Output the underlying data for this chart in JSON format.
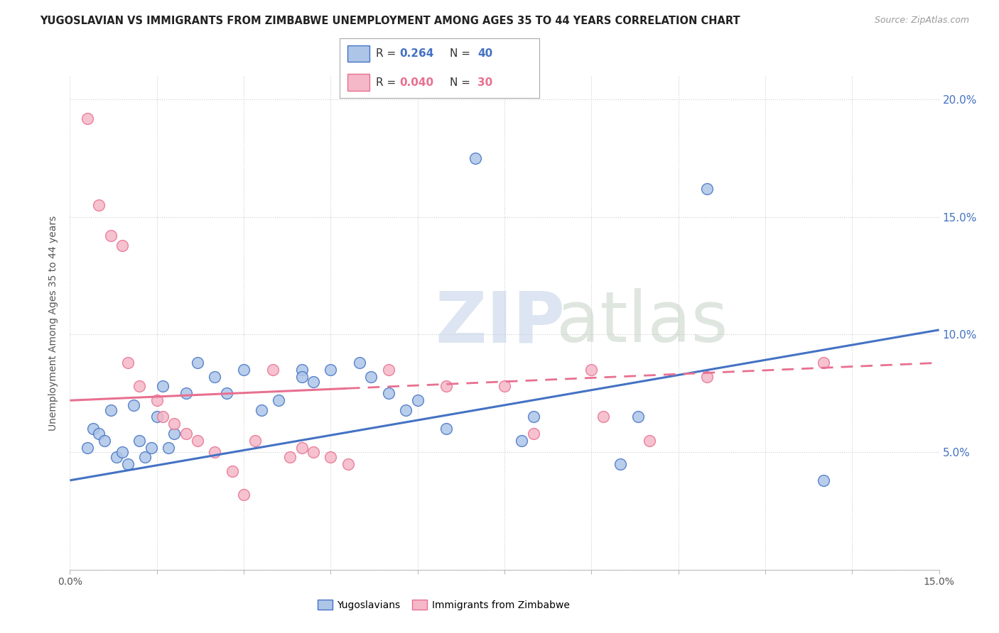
{
  "title": "YUGOSLAVIAN VS IMMIGRANTS FROM ZIMBABWE UNEMPLOYMENT AMONG AGES 35 TO 44 YEARS CORRELATION CHART",
  "source": "Source: ZipAtlas.com",
  "ylabel": "Unemployment Among Ages 35 to 44 years",
  "xlim": [
    0.0,
    15.0
  ],
  "ylim": [
    0.0,
    21.0
  ],
  "legend_label1": "Yugoslavians",
  "legend_label2": "Immigrants from Zimbabwe",
  "blue_color": "#adc6e8",
  "pink_color": "#f5b8c8",
  "line_blue": "#4472c4",
  "line_pink": "#e87090",
  "blue_scatter": [
    [
      0.3,
      5.2
    ],
    [
      0.4,
      6.0
    ],
    [
      0.5,
      5.8
    ],
    [
      0.6,
      5.5
    ],
    [
      0.7,
      6.8
    ],
    [
      0.8,
      4.8
    ],
    [
      0.9,
      5.0
    ],
    [
      1.0,
      4.5
    ],
    [
      1.1,
      7.0
    ],
    [
      1.2,
      5.5
    ],
    [
      1.3,
      4.8
    ],
    [
      1.4,
      5.2
    ],
    [
      1.5,
      6.5
    ],
    [
      1.6,
      7.8
    ],
    [
      1.7,
      5.2
    ],
    [
      1.8,
      5.8
    ],
    [
      2.0,
      7.5
    ],
    [
      2.2,
      8.8
    ],
    [
      2.5,
      8.2
    ],
    [
      2.7,
      7.5
    ],
    [
      3.0,
      8.5
    ],
    [
      3.3,
      6.8
    ],
    [
      3.6,
      7.2
    ],
    [
      4.0,
      8.5
    ],
    [
      4.0,
      8.2
    ],
    [
      4.2,
      8.0
    ],
    [
      4.5,
      8.5
    ],
    [
      5.0,
      8.8
    ],
    [
      5.2,
      8.2
    ],
    [
      5.5,
      7.5
    ],
    [
      5.8,
      6.8
    ],
    [
      6.0,
      7.2
    ],
    [
      6.5,
      6.0
    ],
    [
      7.0,
      17.5
    ],
    [
      7.8,
      5.5
    ],
    [
      8.0,
      6.5
    ],
    [
      9.5,
      4.5
    ],
    [
      9.8,
      6.5
    ],
    [
      11.0,
      16.2
    ],
    [
      13.0,
      3.8
    ]
  ],
  "pink_scatter": [
    [
      0.3,
      19.2
    ],
    [
      0.5,
      15.5
    ],
    [
      0.7,
      14.2
    ],
    [
      0.9,
      13.8
    ],
    [
      1.0,
      8.8
    ],
    [
      1.2,
      7.8
    ],
    [
      1.5,
      7.2
    ],
    [
      1.6,
      6.5
    ],
    [
      1.8,
      6.2
    ],
    [
      2.0,
      5.8
    ],
    [
      2.2,
      5.5
    ],
    [
      2.5,
      5.0
    ],
    [
      2.8,
      4.2
    ],
    [
      3.0,
      3.2
    ],
    [
      3.2,
      5.5
    ],
    [
      3.5,
      8.5
    ],
    [
      3.8,
      4.8
    ],
    [
      4.0,
      5.2
    ],
    [
      4.2,
      5.0
    ],
    [
      4.5,
      4.8
    ],
    [
      4.8,
      4.5
    ],
    [
      5.5,
      8.5
    ],
    [
      6.5,
      7.8
    ],
    [
      7.5,
      7.8
    ],
    [
      8.0,
      5.8
    ],
    [
      9.0,
      8.5
    ],
    [
      9.2,
      6.5
    ],
    [
      10.0,
      5.5
    ],
    [
      11.0,
      8.2
    ],
    [
      13.0,
      8.8
    ]
  ],
  "blue_line_x": [
    0.0,
    15.0
  ],
  "blue_line_y": [
    3.8,
    10.2
  ],
  "pink_line_x": [
    0.0,
    15.0
  ],
  "pink_line_y": [
    7.2,
    8.8
  ],
  "grid_color": "#cccccc",
  "background_color": "#ffffff",
  "yticks": [
    0,
    5,
    10,
    15,
    20
  ],
  "xtick_first": "0.0%",
  "xtick_last": "15.0%"
}
